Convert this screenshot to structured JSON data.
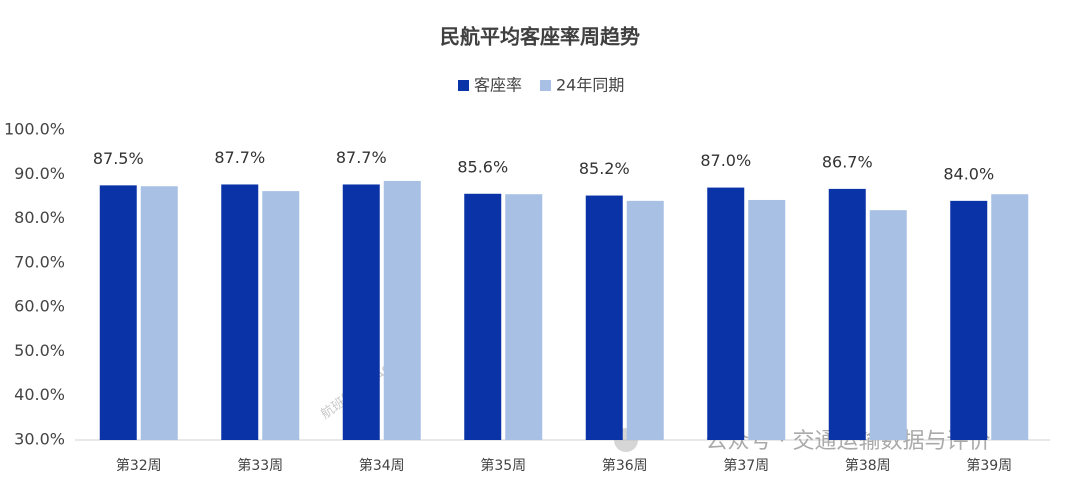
{
  "chart_data": {
    "type": "bar",
    "title": "民航平均客座率周趋势",
    "categories": [
      "第32周",
      "第33周",
      "第34周",
      "第35周",
      "第36周",
      "第37周",
      "第38周",
      "第39周"
    ],
    "series": [
      {
        "name": "客座率",
        "color": "#0a33a8",
        "values": [
          87.5,
          87.7,
          87.7,
          85.6,
          85.2,
          87.0,
          86.7,
          84.0
        ],
        "value_labels": [
          "87.5%",
          "87.7%",
          "87.7%",
          "85.6%",
          "85.2%",
          "87.0%",
          "86.7%",
          "84.0%"
        ]
      },
      {
        "name": "24年同期",
        "color": "#a7c0e4",
        "values": [
          87.3,
          86.2,
          88.5,
          85.5,
          84.0,
          84.2,
          81.9,
          85.5
        ]
      }
    ],
    "ylim": [
      30,
      100
    ],
    "yticks": [
      {
        "value": 30,
        "label": "30.0%"
      },
      {
        "value": 40,
        "label": "40.0%"
      },
      {
        "value": 50,
        "label": "50.0%"
      },
      {
        "value": 60,
        "label": "60.0%"
      },
      {
        "value": 70,
        "label": "70.0%"
      },
      {
        "value": 80,
        "label": "80.0%"
      },
      {
        "value": 90,
        "label": "90.0%"
      },
      {
        "value": 100,
        "label": "100.0%"
      }
    ],
    "grid": false,
    "legend": "top",
    "annotations": [
      "航班管家 DAST",
      "公众号 · 交通运输数据与评价"
    ]
  }
}
